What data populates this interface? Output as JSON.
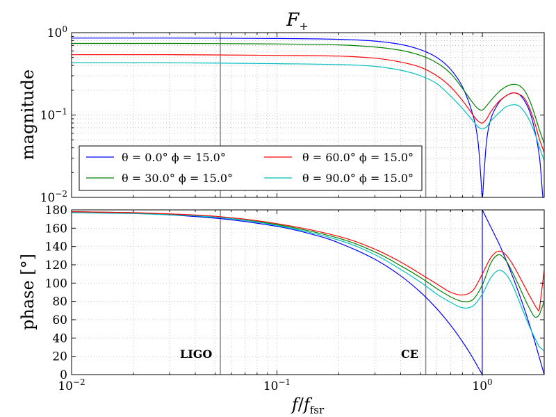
{
  "chart_data": [
    {
      "type": "line",
      "title": "F+",
      "title_main": "F",
      "title_sub": "+",
      "ylabel": "magnitude",
      "xscale": "log",
      "yscale": "log",
      "xlim": [
        0.01,
        2.0
      ],
      "ylim": [
        0.01,
        1.0
      ],
      "yticks": [
        {
          "value": 0.01,
          "base": "10",
          "exp": "−2"
        },
        {
          "value": 0.1,
          "base": "10",
          "exp": "−1"
        },
        {
          "value": 1.0,
          "base": "10",
          "exp": "0"
        }
      ],
      "grid": true,
      "legend": {
        "location": "lower left",
        "columns": 2,
        "entries": [
          {
            "series": 0,
            "label": "θ = 0.0° ϕ = 15.0°"
          },
          {
            "series": 2,
            "label": "θ = 60.0° ϕ = 15.0°"
          },
          {
            "series": 1,
            "label": "θ = 30.0° ϕ = 15.0°"
          },
          {
            "series": 3,
            "label": "θ = 90.0° ϕ = 15.0°"
          }
        ]
      },
      "series": [
        {
          "name": "θ = 0.0° ϕ = 15.0°",
          "color": "#0000ff",
          "x": [
            0.01,
            0.03,
            0.1,
            0.2,
            0.3,
            0.4,
            0.5,
            0.6,
            0.7,
            0.8,
            0.9,
            0.95,
            0.98,
            1.0,
            1.02,
            1.05,
            1.1,
            1.2,
            1.3,
            1.4,
            1.5,
            1.6,
            1.7,
            1.8,
            1.9,
            1.97,
            2.0
          ],
          "y": [
            0.86,
            0.86,
            0.85,
            0.83,
            0.79,
            0.72,
            0.62,
            0.5,
            0.36,
            0.22,
            0.1,
            0.05,
            0.02,
            0.01,
            0.02,
            0.05,
            0.09,
            0.14,
            0.17,
            0.185,
            0.18,
            0.15,
            0.11,
            0.065,
            0.03,
            0.01,
            0.01
          ]
        },
        {
          "name": "θ = 30.0° ϕ = 15.0°",
          "color": "#008000",
          "x": [
            0.01,
            0.03,
            0.1,
            0.2,
            0.3,
            0.4,
            0.5,
            0.6,
            0.7,
            0.8,
            0.9,
            0.95,
            1.0,
            1.05,
            1.1,
            1.2,
            1.3,
            1.4,
            1.5,
            1.6,
            1.7,
            1.8,
            1.9,
            2.0
          ],
          "y": [
            0.74,
            0.74,
            0.73,
            0.71,
            0.67,
            0.61,
            0.53,
            0.43,
            0.32,
            0.21,
            0.14,
            0.12,
            0.115,
            0.13,
            0.15,
            0.19,
            0.22,
            0.235,
            0.23,
            0.2,
            0.15,
            0.1,
            0.065,
            0.045
          ]
        },
        {
          "name": "θ = 60.0° ϕ = 15.0°",
          "color": "#ff0000",
          "x": [
            0.01,
            0.03,
            0.1,
            0.2,
            0.3,
            0.4,
            0.5,
            0.6,
            0.7,
            0.8,
            0.9,
            0.95,
            1.0,
            1.05,
            1.1,
            1.2,
            1.3,
            1.4,
            1.5,
            1.6,
            1.7,
            1.8,
            1.9,
            2.0
          ],
          "y": [
            0.54,
            0.54,
            0.53,
            0.52,
            0.49,
            0.44,
            0.38,
            0.3,
            0.22,
            0.15,
            0.1,
            0.085,
            0.08,
            0.09,
            0.11,
            0.145,
            0.17,
            0.185,
            0.18,
            0.16,
            0.12,
            0.08,
            0.05,
            0.035
          ]
        },
        {
          "name": "θ = 90.0° ϕ = 15.0°",
          "color": "#00bfbf",
          "x": [
            0.01,
            0.03,
            0.1,
            0.2,
            0.3,
            0.4,
            0.5,
            0.6,
            0.7,
            0.8,
            0.9,
            0.95,
            1.0,
            1.05,
            1.1,
            1.2,
            1.3,
            1.4,
            1.5,
            1.6,
            1.7,
            1.8,
            1.9,
            2.0
          ],
          "y": [
            0.43,
            0.43,
            0.42,
            0.41,
            0.39,
            0.35,
            0.3,
            0.24,
            0.17,
            0.12,
            0.085,
            0.072,
            0.068,
            0.072,
            0.085,
            0.105,
            0.125,
            0.133,
            0.13,
            0.11,
            0.085,
            0.06,
            0.04,
            0.028
          ]
        }
      ],
      "vlines": [
        {
          "x": 0.053,
          "label": "LIGO"
        },
        {
          "x": 0.53,
          "label": "CE"
        }
      ]
    },
    {
      "type": "line",
      "ylabel": "phase [°]",
      "xlabel": "f/ffsr",
      "xlabel_f": "f",
      "xlabel_fsub": "fsr",
      "xscale": "log",
      "xlim": [
        0.01,
        2.0
      ],
      "ylim": [
        0,
        180
      ],
      "yticks": [
        0,
        20,
        40,
        60,
        80,
        100,
        120,
        140,
        160,
        180
      ],
      "xticks": [
        {
          "value": 0.01,
          "base": "10",
          "exp": "−2"
        },
        {
          "value": 0.1,
          "base": "10",
          "exp": "−1"
        },
        {
          "value": 1.0,
          "base": "10",
          "exp": "0"
        }
      ],
      "grid": true,
      "series": [
        {
          "name": "θ = 0.0° ϕ = 15.0°",
          "color": "#0000ff",
          "x": [
            0.01,
            0.02,
            0.05,
            0.1,
            0.15,
            0.2,
            0.3,
            0.4,
            0.5,
            0.6,
            0.7,
            0.8,
            0.9,
            0.999,
            1.0,
            1.2,
            1.4,
            1.6,
            1.8,
            2.0
          ],
          "y": [
            178,
            176.5,
            171,
            162,
            153,
            144,
            126,
            108,
            90,
            72,
            54,
            36,
            18,
            0,
            180,
            144,
            108,
            72,
            36,
            0
          ]
        },
        {
          "name": "θ = 30.0° ϕ = 15.0°",
          "color": "#008000",
          "x": [
            0.01,
            0.02,
            0.05,
            0.1,
            0.2,
            0.3,
            0.4,
            0.5,
            0.6,
            0.7,
            0.8,
            0.9,
            1.0,
            1.1,
            1.2,
            1.3,
            1.4,
            1.5,
            1.6,
            1.7,
            1.8,
            1.9,
            2.0
          ],
          "y": [
            178,
            177,
            172,
            164,
            149,
            134,
            119,
            106,
            94,
            85,
            80,
            82,
            98,
            122,
            131,
            125,
            112,
            98,
            84,
            72,
            63,
            66,
            80
          ]
        },
        {
          "name": "θ = 60.0° ϕ = 15.0°",
          "color": "#ff0000",
          "x": [
            0.01,
            0.02,
            0.05,
            0.1,
            0.2,
            0.3,
            0.4,
            0.5,
            0.6,
            0.7,
            0.8,
            0.9,
            1.0,
            1.1,
            1.2,
            1.3,
            1.4,
            1.5,
            1.6,
            1.7,
            1.8,
            1.85,
            1.9,
            2.0
          ],
          "y": [
            178,
            177,
            173,
            165,
            151,
            137,
            123,
            110,
            99,
            90,
            87,
            92,
            110,
            128,
            135,
            131,
            121,
            109,
            97,
            86,
            76,
            72,
            73,
            114
          ]
        },
        {
          "name": "θ = 90.0° ϕ = 15.0°",
          "color": "#00bfbf",
          "x": [
            0.01,
            0.02,
            0.05,
            0.1,
            0.2,
            0.3,
            0.4,
            0.5,
            0.6,
            0.7,
            0.8,
            0.9,
            1.0,
            1.1,
            1.2,
            1.3,
            1.4,
            1.5,
            1.6,
            1.7,
            1.8,
            1.9,
            2.0
          ],
          "y": [
            177,
            176,
            172,
            163,
            147,
            131,
            115,
            101,
            88,
            79,
            73,
            75,
            88,
            106,
            114,
            110,
            98,
            82,
            66,
            52,
            40,
            30,
            26
          ]
        }
      ],
      "vlines": [
        {
          "x": 0.053,
          "label": "LIGO"
        },
        {
          "x": 0.53,
          "label": "CE"
        }
      ]
    }
  ]
}
